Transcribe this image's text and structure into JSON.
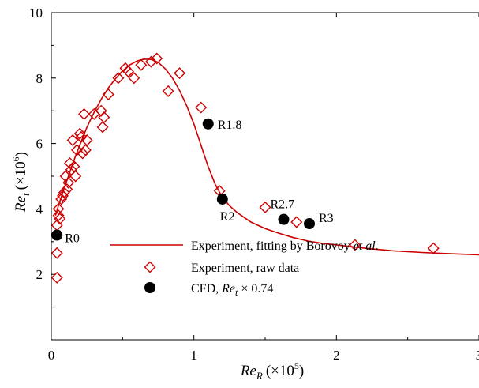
{
  "chart_data": {
    "type": "scatter",
    "xlabel": "Re",
    "xlabel_sub": "R",
    "xlabel_unit": "(×10",
    "xlabel_exp": "5",
    "xlabel_close": ")",
    "ylabel": "Re",
    "ylabel_sub": "t",
    "ylabel_unit": "(×10",
    "ylabel_exp": "6",
    "ylabel_close": ")",
    "xlim": [
      0,
      3
    ],
    "ylim": [
      0,
      10
    ],
    "x_ticks": [
      "0",
      "1",
      "2",
      "3"
    ],
    "y_ticks": [
      "2",
      "4",
      "6",
      "8",
      "10"
    ],
    "grid": false,
    "legend_position": "lower-right",
    "legend": {
      "fit_prefix": "Experiment, fitting by Borovoy ",
      "fit_italic": "et al",
      "fit_suffix": ".",
      "raw": "Experiment, raw data",
      "cfd_prefix": "CFD, ",
      "cfd_var": "Re",
      "cfd_sub": "t",
      "cfd_suffix": " × 0.74"
    },
    "colors": {
      "experiment": "#cc0000",
      "cfd": "#000000"
    },
    "series": [
      {
        "id": "fit",
        "type": "line",
        "x": [
          0.03,
          0.05,
          0.08,
          0.12,
          0.16,
          0.2,
          0.25,
          0.3,
          0.35,
          0.4,
          0.45,
          0.5,
          0.55,
          0.6,
          0.65,
          0.7,
          0.75,
          0.8,
          0.85,
          0.9,
          0.95,
          1.0,
          1.05,
          1.1,
          1.15,
          1.2,
          1.25,
          1.3,
          1.35,
          1.4,
          1.5,
          1.6,
          1.7,
          1.8,
          1.9,
          2.0,
          2.2,
          2.4,
          2.6,
          2.8,
          3.0
        ],
        "y": [
          3.8,
          4.1,
          4.5,
          5.0,
          5.5,
          5.95,
          6.5,
          6.95,
          7.35,
          7.7,
          7.98,
          8.22,
          8.4,
          8.52,
          8.58,
          8.57,
          8.48,
          8.28,
          8.0,
          7.62,
          7.15,
          6.6,
          5.95,
          5.3,
          4.75,
          4.35,
          4.1,
          3.9,
          3.75,
          3.6,
          3.4,
          3.25,
          3.12,
          3.02,
          2.95,
          2.9,
          2.8,
          2.72,
          2.67,
          2.63,
          2.6
        ]
      },
      {
        "id": "raw",
        "type": "scatter",
        "marker": "diamond-open",
        "x": [
          0.04,
          0.04,
          0.04,
          0.05,
          0.05,
          0.06,
          0.07,
          0.08,
          0.09,
          0.1,
          0.11,
          0.12,
          0.13,
          0.14,
          0.15,
          0.16,
          0.17,
          0.18,
          0.2,
          0.21,
          0.22,
          0.23,
          0.24,
          0.25,
          0.3,
          0.35,
          0.36,
          0.37,
          0.4,
          0.47,
          0.52,
          0.54,
          0.58,
          0.63,
          0.7,
          0.74,
          0.82,
          0.9,
          1.05,
          1.18,
          1.5,
          1.72,
          2.13,
          2.68
        ],
        "y": [
          1.9,
          2.65,
          3.5,
          3.8,
          4.0,
          3.7,
          4.3,
          4.4,
          4.5,
          5.0,
          4.6,
          4.8,
          5.4,
          5.2,
          6.1,
          5.3,
          5.0,
          5.8,
          6.3,
          6.2,
          5.7,
          6.9,
          5.8,
          6.1,
          6.9,
          7.0,
          6.5,
          6.8,
          7.5,
          8.0,
          8.3,
          8.2,
          8.0,
          8.4,
          8.5,
          8.6,
          7.6,
          8.15,
          7.1,
          4.55,
          4.05,
          3.6,
          2.9,
          2.8
        ]
      },
      {
        "id": "cfd",
        "type": "scatter",
        "marker": "circle-filled",
        "x": [
          0.04,
          1.1,
          1.2,
          1.63,
          1.81
        ],
        "y": [
          3.2,
          6.6,
          4.3,
          3.68,
          3.55
        ],
        "labels": [
          "R0",
          "R1.8",
          "R2",
          "R2.7",
          "R3"
        ]
      }
    ]
  }
}
